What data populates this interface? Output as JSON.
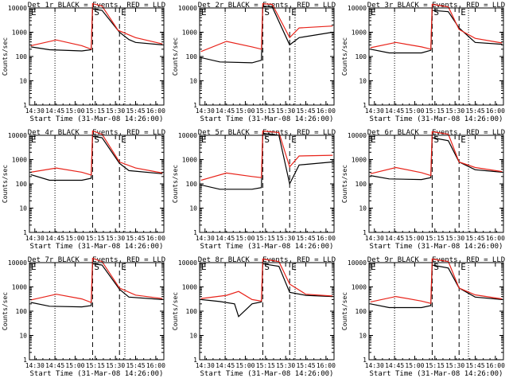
{
  "figure": {
    "xlabel": "Start Time (31-Mar-08 14:26:00)",
    "ylabel": "Counts/sec",
    "x_ticks": [
      "14:30",
      "14:45",
      "15:00",
      "15:15",
      "15:30",
      "15:45",
      "16:00"
    ],
    "x_ticks_alt": [
      "14:30",
      "14:45",
      "15:00",
      "15:15",
      "15:30",
      "15:45",
      "16:00"
    ],
    "y_ticks": [
      "1",
      "10",
      "100",
      "1000",
      "10000"
    ]
  },
  "chart_data": [
    {
      "type": "line",
      "title": "Det 1r BLACK = Events, RED = LLD",
      "scale": "log",
      "ylim": [
        1,
        10000
      ],
      "xlim": [
        "14:26",
        "16:06"
      ],
      "marker_letters": [
        "E",
        "S",
        "E"
      ],
      "dotted_lines": [
        "14:45",
        "15:37"
      ],
      "dashed_lines": [
        "15:13",
        "15:33"
      ],
      "series": [
        {
          "name": "Events",
          "color": "#000000",
          "x": [
            "14:27",
            "14:41",
            "15:05",
            "15:12",
            "15:13",
            "15:20",
            "15:33",
            "15:40",
            "15:45",
            "16:05"
          ],
          "y": [
            250,
            190,
            170,
            190,
            9000,
            8000,
            1000,
            500,
            380,
            300
          ]
        },
        {
          "name": "LLD",
          "color": "#e8231a",
          "x": [
            "14:27",
            "14:46",
            "15:05",
            "15:12",
            "15:13",
            "15:20",
            "15:32",
            "15:45",
            "16:05"
          ],
          "y": [
            280,
            480,
            280,
            200,
            15000,
            12000,
            1200,
            600,
            330
          ]
        }
      ]
    },
    {
      "type": "line",
      "title": "Det 2r BLACK = Events, RED = LLD",
      "scale": "log",
      "ylim": [
        1,
        10000
      ],
      "xlim": [
        "14:26",
        "16:06"
      ],
      "marker_letters": [
        "E",
        "S",
        "E"
      ],
      "dotted_lines": [
        "14:45",
        "15:37"
      ],
      "dashed_lines": [
        "15:13",
        "15:33"
      ],
      "series": [
        {
          "name": "Events",
          "color": "#000000",
          "x": [
            "14:27",
            "14:41",
            "15:05",
            "15:12",
            "15:13",
            "15:20",
            "15:33",
            "15:40",
            "16:05"
          ],
          "y": [
            90,
            60,
            55,
            70,
            12000,
            11000,
            300,
            600,
            1000
          ]
        },
        {
          "name": "LLD",
          "color": "#e8231a",
          "x": [
            "14:27",
            "14:46",
            "15:05",
            "15:12",
            "15:13",
            "15:20",
            "15:33",
            "15:40",
            "16:05"
          ],
          "y": [
            160,
            420,
            250,
            200,
            15000,
            14000,
            600,
            1500,
            1800
          ]
        }
      ]
    },
    {
      "type": "line",
      "title": "Det 3r BLACK = Events, RED = LLD",
      "scale": "log",
      "ylim": [
        1,
        10000
      ],
      "xlim": [
        "14:26",
        "16:06"
      ],
      "marker_letters": [
        "E",
        "S",
        "E"
      ],
      "dotted_lines": [
        "14:45",
        "15:40"
      ],
      "dashed_lines": [
        "15:13",
        "15:33"
      ],
      "series": [
        {
          "name": "Events",
          "color": "#000000",
          "x": [
            "14:27",
            "14:41",
            "15:05",
            "15:12",
            "15:13",
            "15:25",
            "15:33",
            "15:45",
            "16:05"
          ],
          "y": [
            200,
            140,
            140,
            180,
            8000,
            7000,
            1500,
            380,
            320
          ]
        },
        {
          "name": "LLD",
          "color": "#e8231a",
          "x": [
            "14:27",
            "14:46",
            "15:05",
            "15:12",
            "15:13",
            "15:25",
            "15:33",
            "15:45",
            "16:05"
          ],
          "y": [
            230,
            380,
            250,
            200,
            14000,
            11000,
            1300,
            560,
            360
          ]
        }
      ]
    },
    {
      "type": "line",
      "title": "Det 4r BLACK = Events, RED = LLD",
      "scale": "log",
      "ylim": [
        1,
        10000
      ],
      "xlim": [
        "14:26",
        "16:06"
      ],
      "marker_letters": [
        "E",
        "S",
        "E"
      ],
      "dotted_lines": [
        "14:45",
        "15:37"
      ],
      "dashed_lines": [
        "15:13",
        "15:33"
      ],
      "series": [
        {
          "name": "Events",
          "color": "#000000",
          "x": [
            "14:27",
            "14:41",
            "15:05",
            "15:12",
            "15:13",
            "15:20",
            "15:33",
            "15:40",
            "16:05"
          ],
          "y": [
            240,
            140,
            140,
            170,
            9000,
            8000,
            700,
            350,
            260
          ]
        },
        {
          "name": "LLD",
          "color": "#e8231a",
          "x": [
            "14:27",
            "14:46",
            "15:05",
            "15:12",
            "15:13",
            "15:20",
            "15:33",
            "15:45",
            "16:05"
          ],
          "y": [
            300,
            450,
            300,
            230,
            15000,
            11000,
            800,
            450,
            280
          ]
        }
      ]
    },
    {
      "type": "line",
      "title": "Det 5r BLACK = Events, RED = LLD",
      "scale": "log",
      "ylim": [
        1,
        10000
      ],
      "xlim": [
        "14:26",
        "16:06"
      ],
      "marker_letters": [
        "E",
        "S",
        "E"
      ],
      "dotted_lines": [
        "14:45",
        "15:37"
      ],
      "dashed_lines": [
        "15:13",
        "15:33"
      ],
      "series": [
        {
          "name": "Events",
          "color": "#000000",
          "x": [
            "14:27",
            "14:41",
            "15:05",
            "15:12",
            "15:13",
            "15:25",
            "15:33",
            "15:40",
            "16:05"
          ],
          "y": [
            90,
            60,
            60,
            70,
            12000,
            10000,
            100,
            600,
            800
          ]
        },
        {
          "name": "LLD",
          "color": "#e8231a",
          "x": [
            "14:27",
            "14:46",
            "15:05",
            "15:12",
            "15:13",
            "15:25",
            "15:33",
            "15:40",
            "16:05"
          ],
          "y": [
            140,
            280,
            200,
            180,
            15000,
            13000,
            500,
            1400,
            1500
          ]
        }
      ]
    },
    {
      "type": "line",
      "title": "Det 6r BLACK = Events, RED = LLD",
      "scale": "log",
      "ylim": [
        1,
        10000
      ],
      "xlim": [
        "14:26",
        "16:06"
      ],
      "marker_letters": [
        "E",
        "S",
        "E"
      ],
      "dotted_lines": [
        "14:45",
        "15:40"
      ],
      "dashed_lines": [
        "15:13",
        "15:33"
      ],
      "series": [
        {
          "name": "Events",
          "color": "#000000",
          "x": [
            "14:27",
            "14:41",
            "15:05",
            "15:12",
            "15:13",
            "15:25",
            "15:33",
            "15:45",
            "16:05"
          ],
          "y": [
            220,
            160,
            150,
            180,
            8000,
            6000,
            800,
            380,
            300
          ]
        },
        {
          "name": "LLD",
          "color": "#e8231a",
          "x": [
            "14:27",
            "14:46",
            "15:05",
            "15:12",
            "15:13",
            "15:25",
            "15:33",
            "15:45",
            "16:05"
          ],
          "y": [
            260,
            470,
            290,
            220,
            14000,
            11000,
            800,
            470,
            320
          ]
        }
      ]
    },
    {
      "type": "line",
      "title": "Det 7r BLACK = Events, RED = LLD",
      "scale": "log",
      "ylim": [
        1,
        10000
      ],
      "xlim": [
        "14:26",
        "16:06"
      ],
      "marker_letters": [
        "E",
        "S",
        "E"
      ],
      "dotted_lines": [
        "14:45",
        "15:37"
      ],
      "dashed_lines": [
        "15:13",
        "15:33"
      ],
      "series": [
        {
          "name": "Events",
          "color": "#000000",
          "x": [
            "14:27",
            "14:41",
            "15:05",
            "15:12",
            "15:13",
            "15:20",
            "15:33",
            "15:40",
            "16:05"
          ],
          "y": [
            230,
            160,
            150,
            170,
            9000,
            8000,
            800,
            380,
            300
          ]
        },
        {
          "name": "LLD",
          "color": "#e8231a",
          "x": [
            "14:27",
            "14:46",
            "15:05",
            "15:12",
            "15:13",
            "15:20",
            "15:33",
            "15:45",
            "16:05"
          ],
          "y": [
            290,
            500,
            320,
            230,
            15000,
            11000,
            900,
            460,
            330
          ]
        }
      ]
    },
    {
      "type": "line",
      "title": "Det 8r BLACK = Events, RED = LLD",
      "scale": "log",
      "ylim": [
        1,
        10000
      ],
      "xlim": [
        "14:26",
        "16:06"
      ],
      "marker_letters": [
        "E",
        "S",
        "E"
      ],
      "dotted_lines": [
        "14:45",
        "15:37"
      ],
      "dashed_lines": [
        "15:13",
        "15:33"
      ],
      "series": [
        {
          "name": "Events",
          "color": "#000000",
          "x": [
            "14:27",
            "14:41",
            "14:52",
            "14:55",
            "15:05",
            "15:12",
            "15:13",
            "15:25",
            "15:33",
            "15:45",
            "16:05"
          ],
          "y": [
            300,
            250,
            200,
            60,
            200,
            240,
            9000,
            7000,
            600,
            450,
            400
          ]
        },
        {
          "name": "LLD",
          "color": "#e8231a",
          "x": [
            "14:27",
            "14:46",
            "14:55",
            "15:05",
            "15:12",
            "15:13",
            "15:25",
            "15:33",
            "15:45",
            "16:05"
          ],
          "y": [
            330,
            450,
            650,
            300,
            260,
            14000,
            11000,
            1300,
            500,
            420
          ]
        }
      ]
    },
    {
      "type": "line",
      "title": "Det 9r BLACK = Events, RED = LLD",
      "scale": "log",
      "ylim": [
        1,
        10000
      ],
      "xlim": [
        "14:26",
        "16:06"
      ],
      "marker_letters": [
        "E",
        "S",
        "E"
      ],
      "dotted_lines": [
        "14:45",
        "15:40"
      ],
      "dashed_lines": [
        "15:13",
        "15:33"
      ],
      "series": [
        {
          "name": "Events",
          "color": "#000000",
          "x": [
            "14:27",
            "14:41",
            "15:05",
            "15:12",
            "15:13",
            "15:25",
            "15:33",
            "15:45",
            "16:05"
          ],
          "y": [
            200,
            140,
            140,
            170,
            8000,
            6000,
            900,
            380,
            300
          ]
        },
        {
          "name": "LLD",
          "color": "#e8231a",
          "x": [
            "14:27",
            "14:46",
            "15:05",
            "15:12",
            "15:13",
            "15:25",
            "15:33",
            "15:45",
            "16:05"
          ],
          "y": [
            240,
            400,
            260,
            210,
            14000,
            11000,
            900,
            470,
            320
          ]
        }
      ]
    }
  ]
}
